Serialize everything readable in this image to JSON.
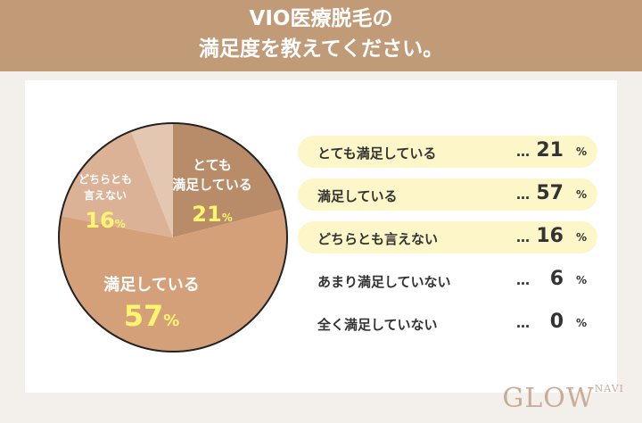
{
  "title": {
    "line1": "VIO医療脱毛の",
    "line2": "満足度を教えてください。"
  },
  "chart_data": {
    "type": "pie",
    "unit": "%",
    "slices": [
      {
        "label": "とても満足している",
        "value": 21,
        "color": "#b98c69",
        "pie_label": [
          "とても",
          "満足している"
        ]
      },
      {
        "label": "満足している",
        "value": 57,
        "color": "#d4a07a",
        "pie_label": [
          "満足している"
        ]
      },
      {
        "label": "どちらとも言えない",
        "value": 16,
        "color": "#dbb296",
        "pie_label": [
          "どちらとも",
          "言えない"
        ]
      },
      {
        "label": "あまり満足していない",
        "value": 6,
        "color": "#e4c7b0",
        "pie_label": []
      },
      {
        "label": "全く満足していない",
        "value": 0,
        "color": "#e4c7b0",
        "pie_label": []
      }
    ],
    "highlight_color": "#fdf6c8",
    "value_color": "#fff56e"
  },
  "dots": "…",
  "logo": {
    "main": "GLOW",
    "sub": "NAVI"
  }
}
